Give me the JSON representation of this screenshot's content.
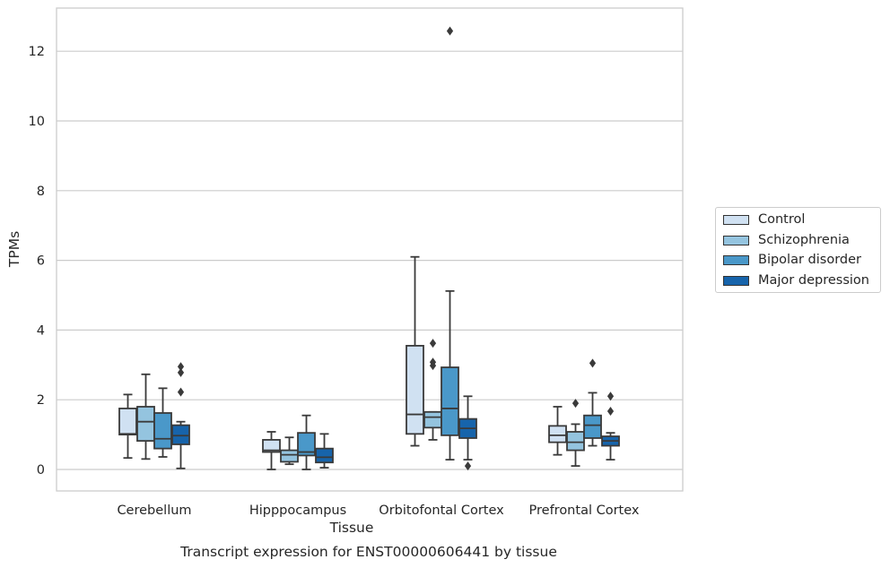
{
  "chart_data": {
    "type": "box",
    "title": "Transcript expression for ENST00000606441 by tissue",
    "xlabel": "Tissue",
    "ylabel": "TPMs",
    "categories": [
      "Cerebellum",
      "Hipppocampus",
      "Orbitofontal Cortex",
      "Prefrontal Cortex"
    ],
    "ylim": [
      -0.6,
      13.1
    ],
    "yticks": [
      "0",
      "2",
      "4",
      "6",
      "8",
      "10",
      "12"
    ],
    "grid": "horizontal",
    "legend_position": "right",
    "series": [
      {
        "name": "Control",
        "color": "#d0e1f2",
        "boxes": [
          {
            "whislo": 0.33,
            "q1": 1.0,
            "med": 1.02,
            "q3": 1.75,
            "whishi": 2.15,
            "fliers": []
          },
          {
            "whislo": 0.0,
            "q1": 0.5,
            "med": 0.55,
            "q3": 0.85,
            "whishi": 1.08,
            "fliers": []
          },
          {
            "whislo": 0.68,
            "q1": 1.02,
            "med": 1.58,
            "q3": 3.55,
            "whishi": 6.1,
            "fliers": []
          },
          {
            "whislo": 0.42,
            "q1": 0.78,
            "med": 0.98,
            "q3": 1.25,
            "whishi": 1.8,
            "fliers": []
          }
        ]
      },
      {
        "name": "Schizophrenia",
        "color": "#94c4df",
        "boxes": [
          {
            "whislo": 0.3,
            "q1": 0.82,
            "med": 1.37,
            "q3": 1.8,
            "whishi": 2.73,
            "fliers": []
          },
          {
            "whislo": 0.15,
            "q1": 0.22,
            "med": 0.42,
            "q3": 0.55,
            "whishi": 0.92,
            "fliers": []
          },
          {
            "whislo": 0.85,
            "q1": 1.2,
            "med": 1.5,
            "q3": 1.65,
            "whishi": 1.65,
            "fliers": [
              3.62,
              3.08,
              2.98
            ]
          },
          {
            "whislo": 0.1,
            "q1": 0.55,
            "med": 0.78,
            "q3": 1.08,
            "whishi": 1.3,
            "fliers": [
              1.9
            ]
          }
        ]
      },
      {
        "name": "Bipolar disorder",
        "color": "#4a98c9",
        "boxes": [
          {
            "whislo": 0.36,
            "q1": 0.6,
            "med": 0.88,
            "q3": 1.62,
            "whishi": 2.33,
            "fliers": []
          },
          {
            "whislo": 0.0,
            "q1": 0.4,
            "med": 0.5,
            "q3": 1.05,
            "whishi": 1.55,
            "fliers": []
          },
          {
            "whislo": 0.28,
            "q1": 0.98,
            "med": 1.75,
            "q3": 2.93,
            "whishi": 5.12,
            "fliers": [
              12.58
            ]
          },
          {
            "whislo": 0.68,
            "q1": 0.9,
            "med": 1.27,
            "q3": 1.55,
            "whishi": 2.2,
            "fliers": [
              3.05
            ]
          }
        ]
      },
      {
        "name": "Major depression",
        "color": "#1764ab",
        "boxes": [
          {
            "whislo": 0.03,
            "q1": 0.72,
            "med": 0.97,
            "q3": 1.27,
            "whishi": 1.37,
            "fliers": [
              2.95,
              2.78,
              2.22
            ]
          },
          {
            "whislo": 0.05,
            "q1": 0.2,
            "med": 0.35,
            "q3": 0.6,
            "whishi": 1.02,
            "fliers": []
          },
          {
            "whislo": 0.28,
            "q1": 0.9,
            "med": 1.18,
            "q3": 1.45,
            "whishi": 2.1,
            "fliers": [
              0.1
            ]
          },
          {
            "whislo": 0.28,
            "q1": 0.68,
            "med": 0.82,
            "q3": 0.95,
            "whishi": 1.05,
            "fliers": [
              2.1,
              1.67
            ]
          }
        ]
      }
    ]
  }
}
